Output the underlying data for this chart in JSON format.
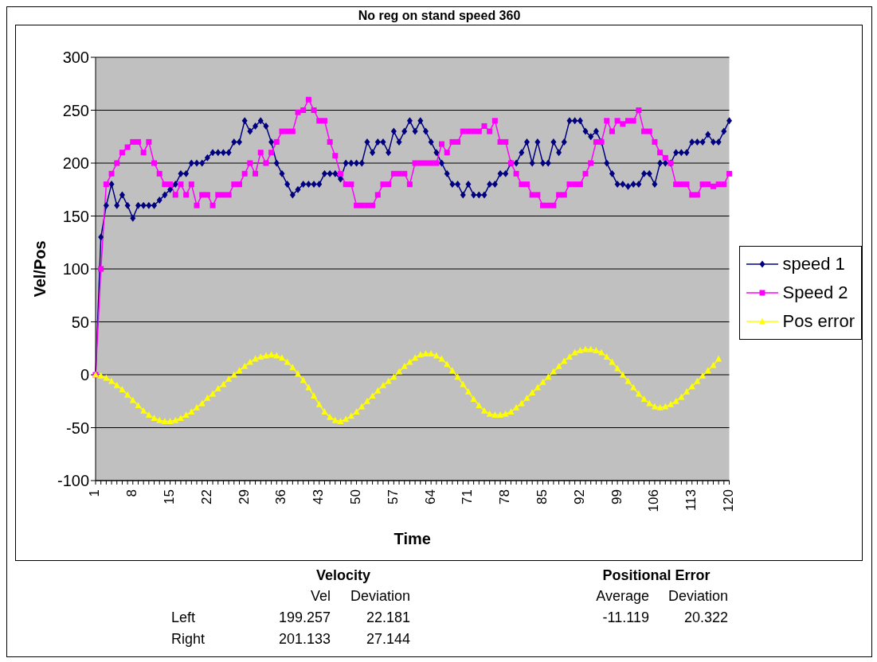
{
  "chart_data": {
    "type": "line",
    "title": "No reg on stand speed 360",
    "xlabel": "Time",
    "ylabel": "Vel/Pos",
    "categories": [
      "1",
      null,
      null,
      null,
      null,
      null,
      null,
      "8",
      null,
      null,
      null,
      null,
      null,
      null,
      "15",
      null,
      null,
      null,
      null,
      null,
      null,
      "22",
      null,
      null,
      null,
      null,
      null,
      null,
      "29",
      null,
      null,
      null,
      null,
      null,
      null,
      "36",
      null,
      null,
      null,
      null,
      null,
      null,
      "43",
      null,
      null,
      null,
      null,
      null,
      null,
      "50",
      null,
      null,
      null,
      null,
      null,
      null,
      "57",
      null,
      null,
      null,
      null,
      null,
      null,
      "64",
      null,
      null,
      null,
      null,
      null,
      null,
      "71",
      null,
      null,
      null,
      null,
      null,
      null,
      "78",
      null,
      null,
      null,
      null,
      null,
      null,
      "85",
      null,
      null,
      null,
      null,
      null,
      null,
      "92",
      null,
      null,
      null,
      null,
      null,
      null,
      "99",
      null,
      null,
      null,
      null,
      null,
      null,
      "106",
      null,
      null,
      null,
      null,
      null,
      null,
      "113",
      null,
      null,
      null,
      null,
      null,
      null,
      "120"
    ],
    "series": [
      {
        "name": "speed 1",
        "color": "#000080",
        "marker": "diamond",
        "values": [
          0,
          130,
          160,
          180,
          160,
          170,
          160,
          148,
          160,
          160,
          160,
          160,
          165,
          170,
          175,
          180,
          190,
          190,
          200,
          200,
          200,
          205,
          210,
          210,
          210,
          210,
          220,
          220,
          240,
          230,
          235,
          240,
          235,
          220,
          200,
          190,
          180,
          170,
          175,
          180,
          180,
          180,
          180,
          190,
          190,
          190,
          185,
          200,
          200,
          200,
          200,
          220,
          210,
          220,
          220,
          210,
          230,
          220,
          230,
          240,
          230,
          240,
          230,
          220,
          210,
          200,
          190,
          180,
          180,
          170,
          180,
          170,
          170,
          170,
          180,
          180,
          190,
          190,
          200,
          200,
          210,
          220,
          200,
          220,
          200,
          200,
          220,
          210,
          220,
          240,
          240,
          240,
          230,
          225,
          230,
          220,
          200,
          190,
          180,
          180,
          178,
          180,
          180,
          190,
          190,
          180,
          200,
          200,
          200,
          210,
          210,
          210,
          220,
          220,
          220,
          227,
          220,
          220,
          230,
          240
        ]
      },
      {
        "name": "Speed 2",
        "color": "#ff00ff",
        "marker": "square",
        "values": [
          0,
          100,
          180,
          190,
          200,
          210,
          215,
          220,
          220,
          210,
          220,
          200,
          190,
          180,
          180,
          170,
          180,
          170,
          180,
          160,
          170,
          170,
          160,
          170,
          170,
          170,
          180,
          180,
          190,
          200,
          190,
          210,
          200,
          210,
          220,
          230,
          230,
          230,
          248,
          250,
          260,
          250,
          240,
          240,
          220,
          207,
          190,
          180,
          180,
          160,
          160,
          160,
          160,
          170,
          180,
          180,
          190,
          190,
          190,
          180,
          200,
          200,
          200,
          200,
          200,
          218,
          210,
          220,
          220,
          230,
          230,
          230,
          230,
          235,
          230,
          240,
          220,
          220,
          200,
          190,
          180,
          180,
          170,
          170,
          160,
          160,
          160,
          170,
          170,
          180,
          180,
          180,
          190,
          200,
          220,
          220,
          240,
          230,
          240,
          237,
          240,
          240,
          250,
          230,
          230,
          220,
          210,
          205,
          200,
          180,
          180,
          180,
          170,
          170,
          180,
          180,
          178,
          180,
          180,
          190
        ]
      },
      {
        "name": "Pos error",
        "color": "#ffff00",
        "marker": "triangle",
        "values": [
          0,
          -1,
          -3,
          -6,
          -10,
          -14,
          -19,
          -24,
          -29,
          -34,
          -38,
          -41,
          -43,
          -44,
          -44,
          -43,
          -41,
          -38,
          -35,
          -31,
          -27,
          -22,
          -18,
          -13,
          -9,
          -4,
          0,
          4,
          8,
          12,
          15,
          17,
          18,
          19,
          18,
          16,
          12,
          7,
          1,
          -5,
          -12,
          -20,
          -28,
          -35,
          -40,
          -43,
          -44,
          -42,
          -39,
          -35,
          -30,
          -25,
          -20,
          -15,
          -10,
          -6,
          -2,
          3,
          8,
          12,
          16,
          19,
          20,
          20,
          18,
          15,
          10,
          4,
          -2,
          -9,
          -16,
          -23,
          -29,
          -34,
          -37,
          -38,
          -38,
          -37,
          -35,
          -31,
          -27,
          -22,
          -17,
          -12,
          -7,
          -2,
          3,
          8,
          13,
          17,
          21,
          23,
          24,
          24,
          23,
          21,
          17,
          12,
          6,
          0,
          -6,
          -12,
          -18,
          -23,
          -27,
          -30,
          -31,
          -30,
          -28,
          -25,
          -21,
          -16,
          -11,
          -6,
          -1,
          4,
          9,
          15,
          null,
          null
        ]
      }
    ],
    "ylim": [
      -100,
      300
    ],
    "yticks": [
      -100,
      -50,
      0,
      50,
      100,
      150,
      200,
      250,
      300
    ],
    "grid": "y",
    "legend": "right",
    "line_style": "solid",
    "annotations": [
      "Velocity",
      "Vel",
      "Deviation",
      "Left",
      "199.257",
      "22.181",
      "Right",
      "201.133",
      "27.144",
      "Positional Error",
      "Average",
      "Deviation",
      "-11.119",
      "20.322"
    ]
  }
}
